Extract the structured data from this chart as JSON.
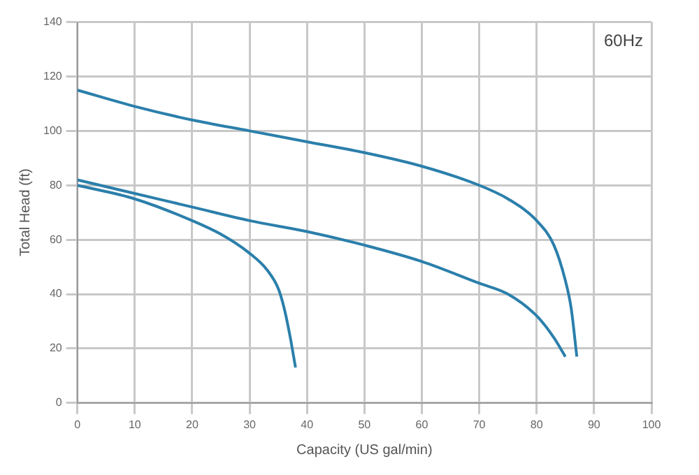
{
  "chart_data": {
    "type": "line",
    "xlabel": "Capacity (US gal/min)",
    "ylabel": "Total Head (ft)",
    "annotations": [
      "60Hz"
    ],
    "xlim": [
      0,
      100
    ],
    "xticks": [
      0,
      10,
      20,
      30,
      40,
      50,
      60,
      70,
      80,
      90,
      100
    ],
    "ylim": [
      0,
      140
    ],
    "yticks": [
      0,
      20,
      40,
      60,
      80,
      100,
      120,
      140
    ],
    "grid": true,
    "legend": false,
    "marker": "none",
    "line_style": "solid",
    "series": [
      {
        "color": "#2b7fab",
        "x": [
          0,
          10,
          20,
          30,
          40,
          50,
          60,
          70,
          75,
          80,
          83,
          85,
          86,
          87
        ],
        "values": [
          115,
          109,
          104,
          100,
          96,
          92,
          87,
          80,
          75,
          67,
          58,
          45,
          35,
          17
        ]
      },
      {
        "color": "#2b7fab",
        "x": [
          0,
          10,
          20,
          30,
          40,
          50,
          60,
          70,
          75,
          80,
          83,
          85
        ],
        "values": [
          82,
          77,
          72,
          67,
          63,
          58,
          52,
          44,
          40,
          32,
          24,
          17
        ]
      },
      {
        "color": "#2b7fab",
        "x": [
          0,
          10,
          20,
          25,
          30,
          33,
          35,
          36,
          37,
          38
        ],
        "values": [
          80,
          75,
          67,
          62,
          55,
          49,
          42,
          35,
          25,
          13
        ]
      }
    ]
  }
}
